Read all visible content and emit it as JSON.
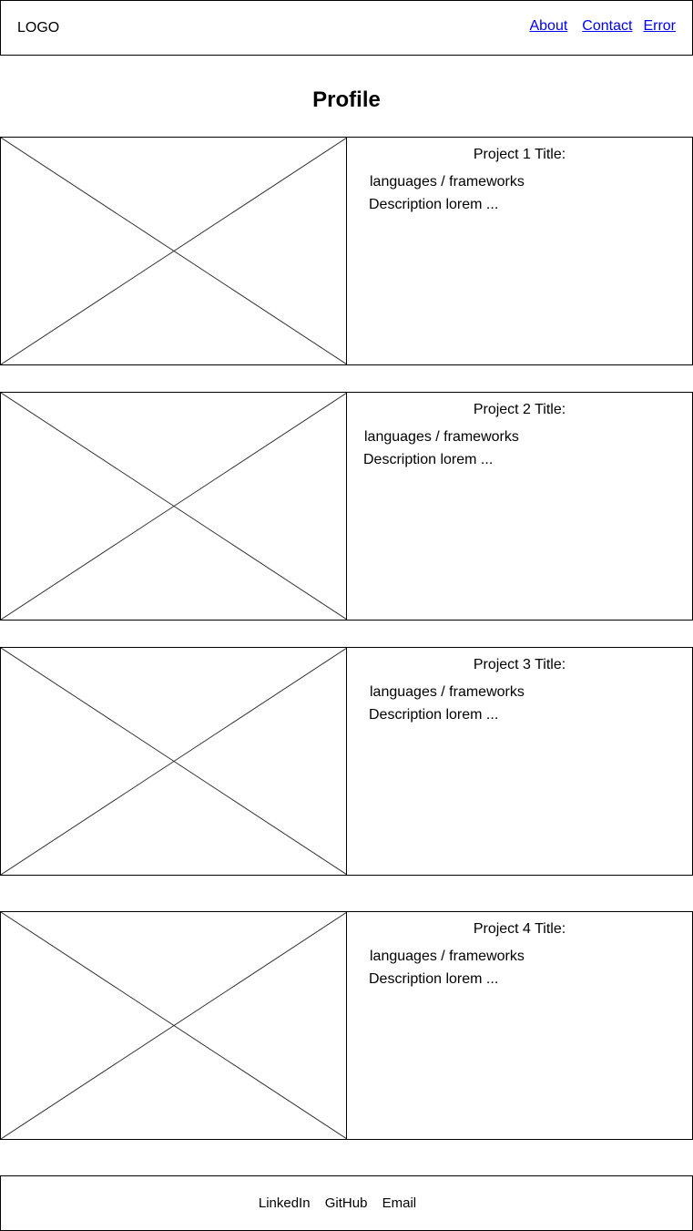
{
  "header": {
    "logo": "LOGO",
    "nav": [
      "About",
      "Contact",
      "Error"
    ]
  },
  "main": {
    "title": "Profile",
    "projects": [
      {
        "title": "Project 1 Title:",
        "languages": "languages / frameworks",
        "description": "Description lorem ..."
      },
      {
        "title": "Project 2 Title:",
        "languages": "languages / frameworks",
        "description": "Description lorem ..."
      },
      {
        "title": "Project 3 Title:",
        "languages": "languages / frameworks",
        "description": "Description lorem ..."
      },
      {
        "title": "Project 4 Title:",
        "languages": "languages / frameworks",
        "description": "Description lorem ..."
      }
    ]
  },
  "footer": {
    "links": [
      "LinkedIn",
      "GitHub",
      "Email"
    ]
  }
}
